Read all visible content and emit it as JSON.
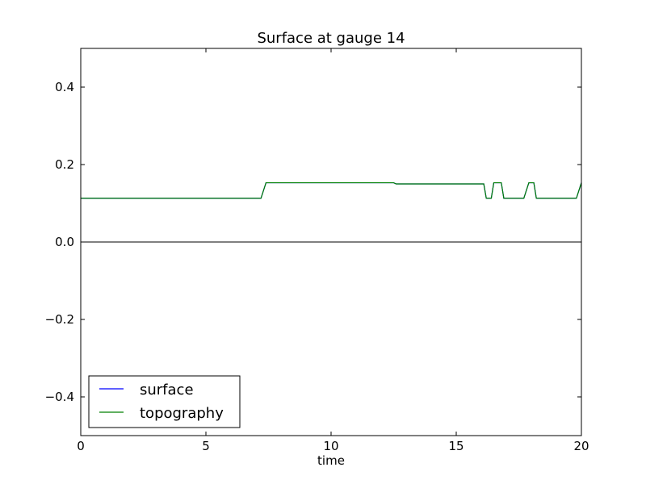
{
  "chart_data": {
    "type": "line",
    "title": "Surface at gauge 14",
    "xlabel": "time",
    "ylabel": "",
    "xlim": [
      0,
      20
    ],
    "ylim": [
      -0.5,
      0.5
    ],
    "xticks": [
      0,
      5,
      10,
      15,
      20
    ],
    "xtick_labels": [
      "0",
      "5",
      "10",
      "15",
      "20"
    ],
    "yticks": [
      -0.4,
      -0.2,
      0.0,
      0.2,
      0.4
    ],
    "ytick_labels": [
      "−0.4",
      "−0.2",
      "0.0",
      "0.2",
      "0.4"
    ],
    "grid": false,
    "legend": "lower-left",
    "zero_line": true,
    "series": [
      {
        "name": "surface",
        "color": "#0000ff",
        "x": [
          0,
          7.2,
          7.4,
          12.5,
          12.6,
          16.1,
          16.2,
          16.4,
          16.5,
          16.8,
          16.9,
          17.7,
          17.9,
          18.1,
          18.2,
          19.8,
          20
        ],
        "y": [
          0.113,
          0.113,
          0.153,
          0.153,
          0.15,
          0.15,
          0.113,
          0.113,
          0.153,
          0.153,
          0.113,
          0.113,
          0.153,
          0.153,
          0.113,
          0.113,
          0.153
        ]
      },
      {
        "name": "topography",
        "color": "#008000",
        "x": [
          0,
          7.2,
          7.4,
          12.5,
          12.6,
          16.1,
          16.2,
          16.4,
          16.5,
          16.8,
          16.9,
          17.7,
          17.9,
          18.1,
          18.2,
          19.8,
          20
        ],
        "y": [
          0.113,
          0.113,
          0.153,
          0.153,
          0.15,
          0.15,
          0.113,
          0.113,
          0.153,
          0.153,
          0.113,
          0.113,
          0.153,
          0.153,
          0.113,
          0.113,
          0.153
        ]
      }
    ]
  }
}
